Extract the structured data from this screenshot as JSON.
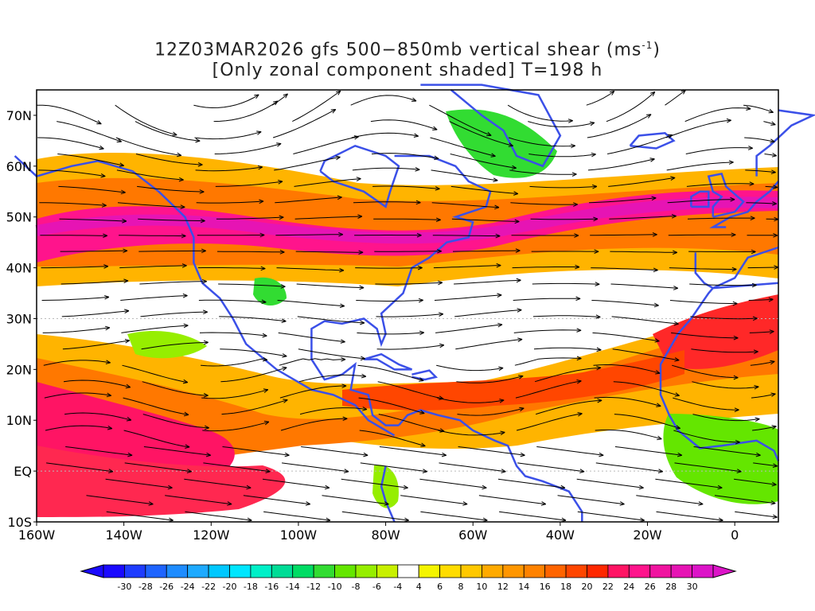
{
  "title": {
    "line1_prefix": "12Z03MAR2026 gfs 500−850mb vertical shear (ms",
    "line1_sup": "-1",
    "line1_suffix": ")",
    "line2": "[Only zonal component shaded] T=198 h"
  },
  "map": {
    "lon_range": [
      -160,
      10
    ],
    "lat_range": [
      -10,
      75
    ],
    "lat_labels": [
      {
        "lat": 70,
        "text": "70N"
      },
      {
        "lat": 60,
        "text": "60N"
      },
      {
        "lat": 50,
        "text": "50N"
      },
      {
        "lat": 40,
        "text": "40N"
      },
      {
        "lat": 30,
        "text": "30N"
      },
      {
        "lat": 20,
        "text": "20N"
      },
      {
        "lat": 10,
        "text": "10N"
      },
      {
        "lat": 0,
        "text": "EQ"
      },
      {
        "lat": -10,
        "text": "10S"
      }
    ],
    "lon_labels": [
      {
        "lon": -160,
        "text": "160W"
      },
      {
        "lon": -140,
        "text": "140W"
      },
      {
        "lon": -120,
        "text": "120W"
      },
      {
        "lon": -100,
        "text": "100W"
      },
      {
        "lon": -80,
        "text": "80W"
      },
      {
        "lon": -60,
        "text": "60W"
      },
      {
        "lon": -40,
        "text": "40W"
      },
      {
        "lon": -20,
        "text": "20W"
      },
      {
        "lon": 0,
        "text": "0"
      }
    ],
    "colors": {
      "coastline": "#3b50e8",
      "streamline": "#000000",
      "frame": "#000000"
    }
  },
  "colorbar": {
    "labels": [
      "-30",
      "-28",
      "-26",
      "-24",
      "-22",
      "-20",
      "-18",
      "-16",
      "-14",
      "-12",
      "-10",
      "-8",
      "-6",
      "-4",
      "4",
      "6",
      "8",
      "10",
      "12",
      "14",
      "16",
      "18",
      "20",
      "22",
      "24",
      "26",
      "28",
      "30"
    ],
    "colors": [
      "#1a0aff",
      "#1e3cff",
      "#1e64ff",
      "#1e8cff",
      "#1eaaff",
      "#00c8ff",
      "#00e6ff",
      "#00f0c8",
      "#00dc96",
      "#00dc64",
      "#32dc32",
      "#64e600",
      "#96ee00",
      "#c8f000",
      "#ffffff",
      "#f5f500",
      "#ffdc00",
      "#ffc800",
      "#ffaa00",
      "#ff9600",
      "#ff8200",
      "#ff6400",
      "#ff4600",
      "#ff2800",
      "#ff1464",
      "#ff148c",
      "#f014a0",
      "#e614b4",
      "#dc14c8"
    ]
  }
}
